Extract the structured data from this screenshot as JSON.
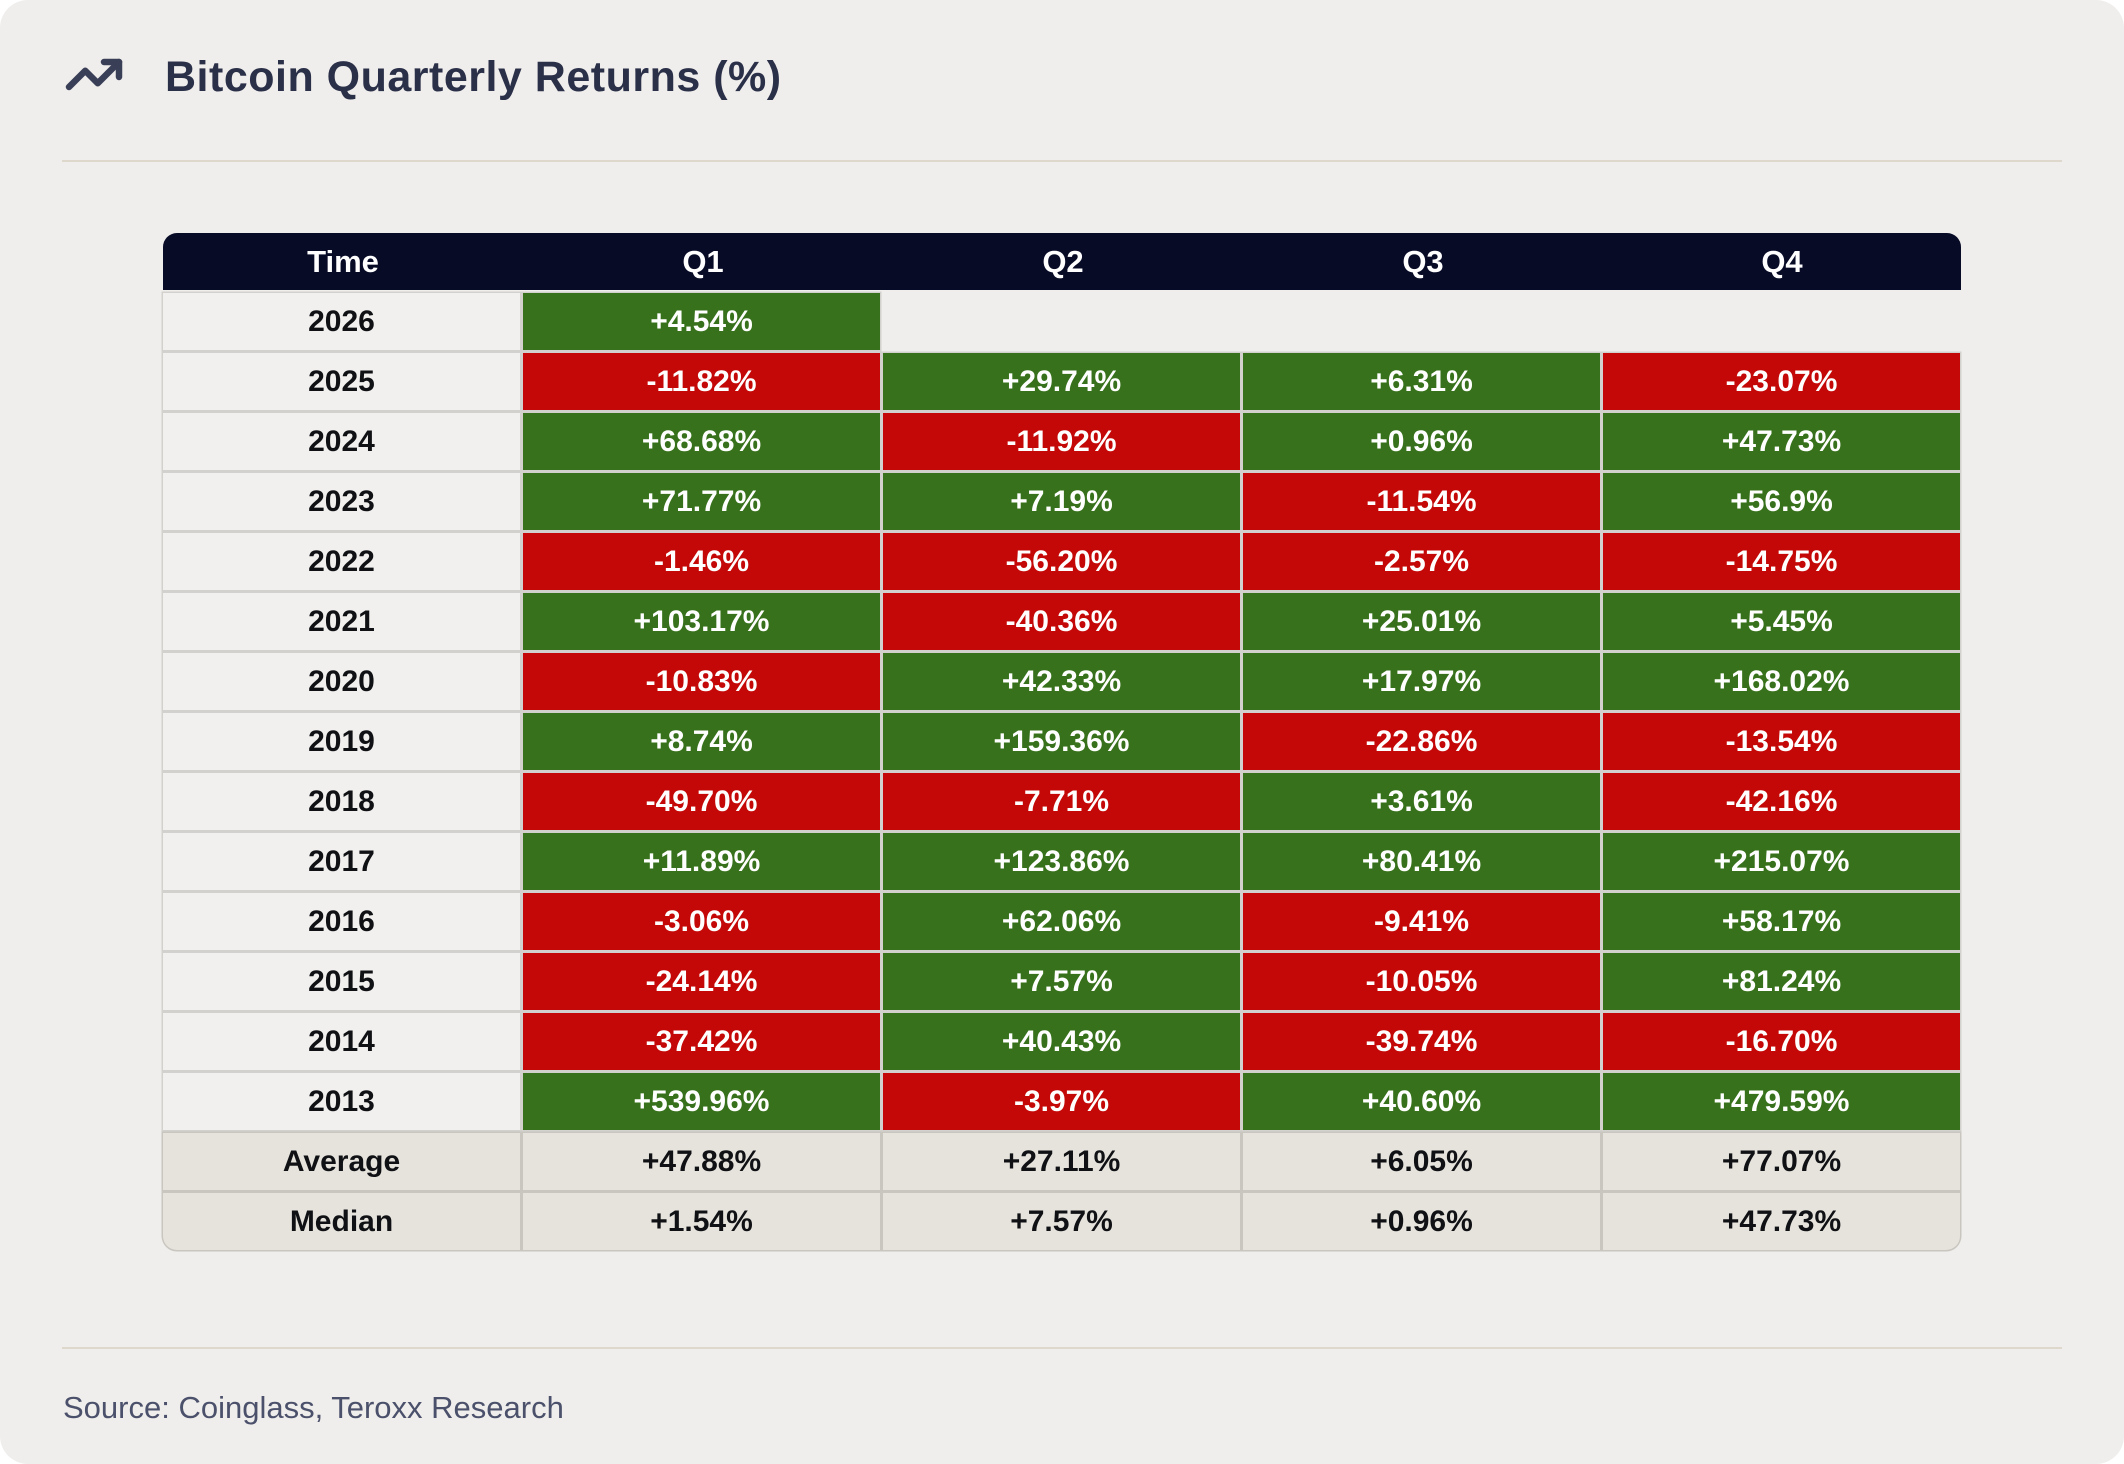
{
  "header": {
    "title": "Bitcoin Quarterly Returns (%)"
  },
  "footer": {
    "source": "Source: Coinglass, Teroxx Research"
  },
  "colors": {
    "positive": "#38711b",
    "negative": "#c40808",
    "header_bg": "#070b26",
    "page_bg": "#f0eeec",
    "summary_bg": "#e6e3dd"
  },
  "chart_data": {
    "type": "table",
    "title": "Bitcoin Quarterly Returns (%)",
    "unit": "%",
    "columns": [
      "Time",
      "Q1",
      "Q2",
      "Q3",
      "Q4"
    ],
    "color_coding": {
      "positive": "green",
      "negative": "red"
    },
    "rows": [
      {
        "label": "2026",
        "kind": "year",
        "cells": [
          "+4.54%",
          "",
          "",
          ""
        ]
      },
      {
        "label": "2025",
        "kind": "year",
        "cells": [
          "-11.82%",
          "+29.74%",
          "+6.31%",
          "-23.07%"
        ]
      },
      {
        "label": "2024",
        "kind": "year",
        "cells": [
          "+68.68%",
          "-11.92%",
          "+0.96%",
          "+47.73%"
        ]
      },
      {
        "label": "2023",
        "kind": "year",
        "cells": [
          "+71.77%",
          "+7.19%",
          "-11.54%",
          "+56.9%"
        ]
      },
      {
        "label": "2022",
        "kind": "year",
        "cells": [
          "-1.46%",
          "-56.20%",
          "-2.57%",
          "-14.75%"
        ]
      },
      {
        "label": "2021",
        "kind": "year",
        "cells": [
          "+103.17%",
          "-40.36%",
          "+25.01%",
          "+5.45%"
        ]
      },
      {
        "label": "2020",
        "kind": "year",
        "cells": [
          "-10.83%",
          "+42.33%",
          "+17.97%",
          "+168.02%"
        ]
      },
      {
        "label": "2019",
        "kind": "year",
        "cells": [
          "+8.74%",
          "+159.36%",
          "-22.86%",
          "-13.54%"
        ]
      },
      {
        "label": "2018",
        "kind": "year",
        "cells": [
          "-49.70%",
          "-7.71%",
          "+3.61%",
          "-42.16%"
        ]
      },
      {
        "label": "2017",
        "kind": "year",
        "cells": [
          "+11.89%",
          "+123.86%",
          "+80.41%",
          "+215.07%"
        ]
      },
      {
        "label": "2016",
        "kind": "year",
        "cells": [
          "-3.06%",
          "+62.06%",
          "-9.41%",
          "+58.17%"
        ]
      },
      {
        "label": "2015",
        "kind": "year",
        "cells": [
          "-24.14%",
          "+7.57%",
          "-10.05%",
          "+81.24%"
        ]
      },
      {
        "label": "2014",
        "kind": "year",
        "cells": [
          "-37.42%",
          "+40.43%",
          "-39.74%",
          "-16.70%"
        ]
      },
      {
        "label": "2013",
        "kind": "year",
        "cells": [
          "+539.96%",
          "-3.97%",
          "+40.60%",
          "+479.59%"
        ]
      },
      {
        "label": "Average",
        "kind": "summary",
        "cells": [
          "+47.88%",
          "+27.11%",
          "+6.05%",
          "+77.07%"
        ]
      },
      {
        "label": "Median",
        "kind": "summary",
        "cells": [
          "+1.54%",
          "+7.57%",
          "+0.96%",
          "+47.73%"
        ]
      }
    ]
  }
}
